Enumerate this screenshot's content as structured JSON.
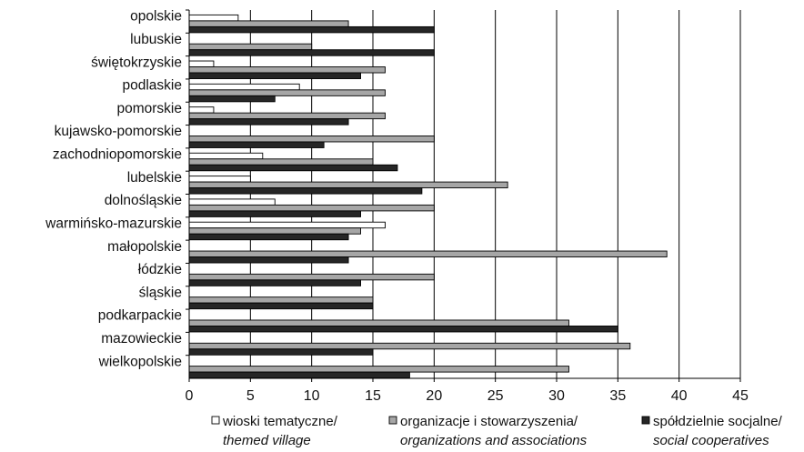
{
  "chart_data": {
    "type": "bar",
    "orientation": "horizontal",
    "categories": [
      "opolskie",
      "lubuskie",
      "świętokrzyskie",
      "podlaskie",
      "pomorskie",
      "kujawsko-pomorskie",
      "zachodniopomorskie",
      "lubelskie",
      "dolnośląskie",
      "warmińsko-mazurskie",
      "małopolskie",
      "łódzkie",
      "śląskie",
      "podkarpackie",
      "mazowieckie",
      "wielkopolskie"
    ],
    "series": [
      {
        "name": "wioski tematyczne/",
        "name_en": "themed village",
        "color": "#ffffff",
        "values": [
          4,
          0,
          2,
          9,
          2,
          0,
          6,
          5,
          7,
          16,
          0,
          0,
          0,
          0,
          0,
          0
        ]
      },
      {
        "name": "organizacje i stowarzyszenia/",
        "name_en": "organizations and associations",
        "color": "#a6a6a6",
        "values": [
          13,
          10,
          16,
          16,
          16,
          20,
          15,
          26,
          20,
          14,
          39,
          20,
          15,
          31,
          36,
          31
        ]
      },
      {
        "name": "spółdzielnie socjalne/",
        "name_en": "social cooperatives",
        "color": "#262626",
        "values": [
          20,
          20,
          14,
          7,
          13,
          11,
          17,
          19,
          14,
          13,
          13,
          14,
          15,
          35,
          15,
          18
        ]
      }
    ],
    "xlim": [
      0,
      45
    ],
    "xticks": [
      "0",
      "5",
      "10",
      "15",
      "20",
      "25",
      "30",
      "35",
      "40",
      "45"
    ],
    "grid": "vertical",
    "legend_position": "bottom"
  }
}
